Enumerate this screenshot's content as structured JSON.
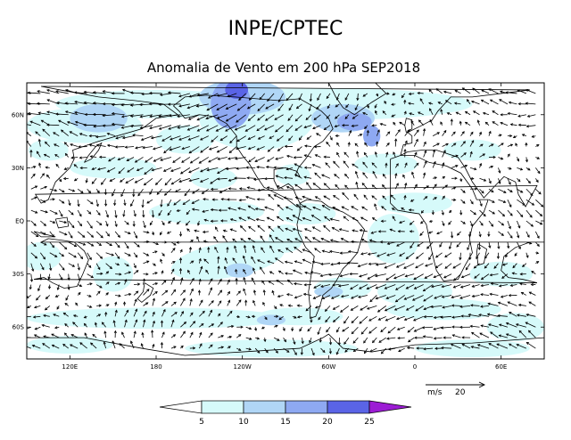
{
  "header": {
    "title": "INPE/CPTEC",
    "subtitle": "Anomalia de Vento em 200 hPa SEP2018"
  },
  "map": {
    "lat_labels": [
      "60N",
      "30N",
      "EQ",
      "30S",
      "60S"
    ],
    "lat_values": [
      60,
      30,
      0,
      -30,
      -60
    ],
    "lon_labels": [
      "120E",
      "180",
      "120W",
      "60W",
      "0",
      "60E"
    ],
    "lon_values": [
      120,
      180,
      240,
      300,
      360,
      420
    ],
    "lon_range": [
      90,
      450
    ],
    "lat_range": [
      -78,
      78
    ]
  },
  "legend": {
    "levels": [
      "5",
      "10",
      "15",
      "20",
      "25"
    ],
    "colors": [
      "#ffffff",
      "#d6fafa",
      "#b0d6f6",
      "#8ea9f2",
      "#5a64e6",
      "#9c1cd4"
    ]
  },
  "reference_vector": {
    "units": "m/s",
    "value": "20"
  }
}
